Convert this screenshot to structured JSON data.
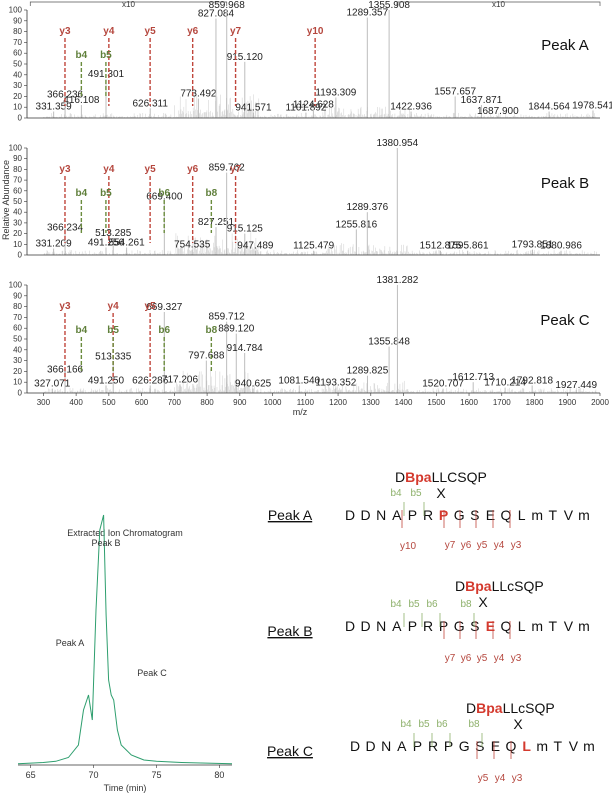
{
  "chart_data": [
    {
      "type": "mass-spectrum",
      "name": "Peak A",
      "xlim": [
        250,
        2000
      ],
      "ylim": [
        0,
        100
      ],
      "x10_marks": [
        {
          "from": 260,
          "to": 860,
          "label": "x10"
        },
        {
          "from": 1380,
          "to": 2000,
          "label": "x10"
        }
      ],
      "peaks": [
        {
          "mz": 331.359,
          "y": 6
        },
        {
          "mz": 366.236,
          "y": 17
        },
        {
          "mz": 416.108,
          "y": 12
        },
        {
          "mz": 491.301,
          "y": 36
        },
        {
          "mz": 626.311,
          "y": 9
        },
        {
          "mz": 773.492,
          "y": 18
        },
        {
          "mz": 827.084,
          "y": 92
        },
        {
          "mz": 859.968,
          "y": 100
        },
        {
          "mz": 915.12,
          "y": 52
        },
        {
          "mz": 941.571,
          "y": 5
        },
        {
          "mz": 1101.892,
          "y": 5
        },
        {
          "mz": 1124.628,
          "y": 8
        },
        {
          "mz": 1193.309,
          "y": 19
        },
        {
          "mz": 1289.357,
          "y": 93
        },
        {
          "mz": 1355.908,
          "y": 100
        },
        {
          "mz": 1422.936,
          "y": 6
        },
        {
          "mz": 1557.657,
          "y": 20
        },
        {
          "mz": 1637.871,
          "y": 12
        },
        {
          "mz": 1687.9,
          "y": 2
        },
        {
          "mz": 1844.564,
          "y": 6
        },
        {
          "mz": 1978.541,
          "y": 7
        }
      ],
      "ion_markers": [
        {
          "ion": "y3",
          "mz": 366,
          "type": "y"
        },
        {
          "ion": "y4",
          "mz": 500,
          "type": "y"
        },
        {
          "ion": "y5",
          "mz": 626,
          "type": "y"
        },
        {
          "ion": "y6",
          "mz": 756,
          "type": "y"
        },
        {
          "ion": "y7",
          "mz": 887,
          "type": "y"
        },
        {
          "ion": "y10",
          "mz": 1130,
          "type": "y"
        },
        {
          "ion": "b4",
          "mz": 416,
          "type": "b"
        },
        {
          "ion": "b5",
          "mz": 491,
          "type": "b"
        }
      ]
    },
    {
      "type": "mass-spectrum",
      "name": "Peak B",
      "xlim": [
        250,
        2000
      ],
      "ylim": [
        0,
        100
      ],
      "peaks": [
        {
          "mz": 331.209,
          "y": 6
        },
        {
          "mz": 366.234,
          "y": 21
        },
        {
          "mz": 491.256,
          "y": 7
        },
        {
          "mz": 513.285,
          "y": 16
        },
        {
          "mz": 554.261,
          "y": 7
        },
        {
          "mz": 669.4,
          "y": 50
        },
        {
          "mz": 754.535,
          "y": 5
        },
        {
          "mz": 827.251,
          "y": 26
        },
        {
          "mz": 859.762,
          "y": 77
        },
        {
          "mz": 915.125,
          "y": 20
        },
        {
          "mz": 947.489,
          "y": 4
        },
        {
          "mz": 1125.479,
          "y": 4
        },
        {
          "mz": 1255.816,
          "y": 24
        },
        {
          "mz": 1289.376,
          "y": 40
        },
        {
          "mz": 1380.954,
          "y": 100
        },
        {
          "mz": 1512.875,
          "y": 4
        },
        {
          "mz": 1595.861,
          "y": 4
        },
        {
          "mz": 1793.851,
          "y": 5
        },
        {
          "mz": 1880.986,
          "y": 4
        }
      ],
      "ion_markers": [
        {
          "ion": "y3",
          "mz": 366,
          "type": "y"
        },
        {
          "ion": "y4",
          "mz": 500,
          "type": "y"
        },
        {
          "ion": "y5",
          "mz": 626,
          "type": "y"
        },
        {
          "ion": "y6",
          "mz": 756,
          "type": "y"
        },
        {
          "ion": "y7",
          "mz": 887,
          "type": "y"
        },
        {
          "ion": "b4",
          "mz": 416,
          "type": "b"
        },
        {
          "ion": "b5",
          "mz": 491,
          "type": "b"
        },
        {
          "ion": "b6",
          "mz": 669,
          "type": "b"
        },
        {
          "ion": "b8",
          "mz": 813,
          "type": "b"
        }
      ]
    },
    {
      "type": "mass-spectrum",
      "name": "Peak C",
      "xlim": [
        250,
        2000
      ],
      "ylim": [
        0,
        100
      ],
      "peaks": [
        {
          "mz": 327.071,
          "y": 4
        },
        {
          "mz": 366.166,
          "y": 17
        },
        {
          "mz": 491.25,
          "y": 7
        },
        {
          "mz": 513.335,
          "y": 29
        },
        {
          "mz": 626.286,
          "y": 7
        },
        {
          "mz": 669.327,
          "y": 75
        },
        {
          "mz": 717.206,
          "y": 8
        },
        {
          "mz": 797.688,
          "y": 30
        },
        {
          "mz": 859.712,
          "y": 66
        },
        {
          "mz": 889.12,
          "y": 55
        },
        {
          "mz": 914.784,
          "y": 37
        },
        {
          "mz": 940.625,
          "y": 4
        },
        {
          "mz": 1081.54,
          "y": 7
        },
        {
          "mz": 1193.352,
          "y": 5
        },
        {
          "mz": 1289.825,
          "y": 16
        },
        {
          "mz": 1355.848,
          "y": 43
        },
        {
          "mz": 1381.282,
          "y": 100
        },
        {
          "mz": 1520.707,
          "y": 4
        },
        {
          "mz": 1612.713,
          "y": 10
        },
        {
          "mz": 1710.214,
          "y": 5
        },
        {
          "mz": 1792.818,
          "y": 7
        },
        {
          "mz": 1927.449,
          "y": 3
        }
      ],
      "ion_markers": [
        {
          "ion": "y3",
          "mz": 366,
          "type": "y"
        },
        {
          "ion": "y4",
          "mz": 513,
          "type": "y"
        },
        {
          "ion": "y5",
          "mz": 626,
          "type": "y"
        },
        {
          "ion": "b4",
          "mz": 416,
          "type": "b"
        },
        {
          "ion": "b5",
          "mz": 513,
          "type": "b"
        },
        {
          "ion": "b6",
          "mz": 669,
          "type": "b"
        },
        {
          "ion": "b8",
          "mz": 813,
          "type": "b"
        }
      ]
    },
    {
      "type": "line",
      "title": "Extracted Ion Chromatogram",
      "xlabel": "Time (min)",
      "xlim": [
        64,
        81
      ],
      "xticks": [
        65,
        70,
        75,
        80
      ],
      "x": [
        64,
        66,
        67,
        68,
        68.8,
        69.2,
        69.6,
        69.9,
        70.2,
        70.5,
        70.8,
        71.0,
        71.2,
        71.4,
        71.6,
        71.9,
        72.2,
        72.6,
        73.0,
        73.5,
        74,
        75,
        77,
        81
      ],
      "y": [
        0.5,
        1,
        1.5,
        3,
        8,
        22,
        28,
        18,
        62,
        94,
        100,
        60,
        34,
        28,
        26,
        14,
        8,
        6,
        4,
        3,
        2,
        1.5,
        1,
        0.5
      ],
      "annotations": [
        {
          "label": "Peak A",
          "x": 69.6
        },
        {
          "label": "Peak B",
          "x": 70.8
        },
        {
          "label": "Peak C",
          "x": 71.6
        }
      ]
    }
  ],
  "labels": {
    "y_axis": "Relative Abundance",
    "x_axis": "m/z",
    "x10": "x10",
    "peak_a": "Peak A",
    "peak_b": "Peak B",
    "peak_c": "Peak C",
    "eic_title": "Extracted Ion Chromatogram",
    "eic_x": "Time (min)"
  },
  "sequences": {
    "peak_a": {
      "top": [
        "D",
        "Bpa",
        "LLCSQP"
      ],
      "cross": "X",
      "main": "DDNAPRPGSEQLmTVm",
      "red_index": 6
    },
    "peak_b": {
      "top": [
        "D",
        "Bpa",
        "LLcSQP"
      ],
      "cross": "X",
      "main": "DDNAPRPGSEQLmTVm",
      "red_index": 9
    },
    "peak_c": {
      "top": [
        "D",
        "Bpa",
        "LLcSQP"
      ],
      "cross": "X",
      "main": "DDNAPRPGSEQLmTVm",
      "red_index": 11
    }
  },
  "colors": {
    "y_ion": "#b5473e",
    "b_ion": "#6b8c3e",
    "spectrum": "#c8c8c8",
    "chromatogram": "#2e9e6e",
    "highlight": "#d43a2e"
  }
}
